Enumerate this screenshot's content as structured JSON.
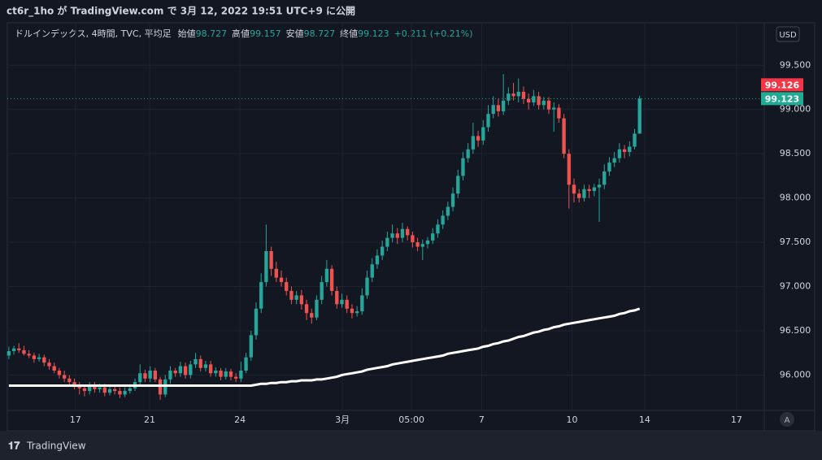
{
  "header": {
    "title": "ct6r_1ho が TradingView.com で 3月 12, 2022 19:51 UTC+9 に公開"
  },
  "footer": {
    "brand": "TradingView"
  },
  "chart_data": {
    "type": "candlestick",
    "symbol": "ドルインデックス, 4時間, TVC, 平均足",
    "ohlc_legend": [
      {
        "label": "始値",
        "value": "98.727"
      },
      {
        "label": "高値",
        "value": "99.157"
      },
      {
        "label": "安値",
        "value": "98.727"
      },
      {
        "label": "終値",
        "value": "99.123"
      }
    ],
    "change": "+0.211 (+0.21%)",
    "currency": "USD",
    "scale_mode": "A",
    "up_color": "#26a69a",
    "down_color": "#ef5350",
    "ma_color": "#ffffff",
    "ylim": [
      95.6,
      99.98
    ],
    "yticks": [
      {
        "value": 96,
        "label": "96.000"
      },
      {
        "value": 96.5,
        "label": "96.500"
      },
      {
        "value": 97,
        "label": "97.000"
      },
      {
        "value": 97.5,
        "label": "97.500"
      },
      {
        "value": 98,
        "label": "98.000"
      },
      {
        "value": 98.5,
        "label": "98.500"
      },
      {
        "value": 99,
        "label": "99.000"
      },
      {
        "value": 99.5,
        "label": "99.500"
      }
    ],
    "xlim": [
      -0.3,
      149.7
    ],
    "xticks": [
      {
        "value": 13.2,
        "label": "17"
      },
      {
        "value": 27.9,
        "label": "21"
      },
      {
        "value": 45.8,
        "label": "24"
      },
      {
        "value": 66.1,
        "label": "3月"
      },
      {
        "value": 79.8,
        "label": "05:00"
      },
      {
        "value": 93.7,
        "label": "7"
      },
      {
        "value": 111.6,
        "label": "10"
      },
      {
        "value": 126,
        "label": "14"
      },
      {
        "value": 144.2,
        "label": "17"
      }
    ],
    "price_labels": [
      {
        "value": 99.126,
        "color": "#f23645"
      },
      {
        "value": 99.123,
        "color": "#22ab94"
      }
    ],
    "open": [
      96.22,
      96.27,
      96.3,
      96.28,
      96.24,
      96.22,
      96.18,
      96.2,
      96.14,
      96.1,
      96.05,
      96.0,
      95.96,
      95.92,
      95.88,
      95.85,
      95.82,
      95.88,
      95.84,
      95.86,
      95.8,
      95.84,
      95.82,
      95.78,
      95.82,
      95.85,
      95.92,
      96.02,
      95.96,
      96.05,
      95.95,
      95.78,
      95.95,
      96.05,
      96.02,
      96.1,
      96.0,
      96.12,
      96.18,
      96.08,
      96.12,
      96.02,
      96.05,
      95.98,
      96.04,
      95.98,
      95.96,
      96.05,
      96.2,
      96.45,
      96.75,
      97.05,
      97.4,
      97.2,
      97.1,
      97.05,
      96.95,
      96.85,
      96.9,
      96.8,
      96.7,
      96.65,
      96.85,
      97.05,
      97.2,
      96.95,
      96.8,
      96.85,
      96.75,
      96.7,
      96.72,
      96.9,
      97.1,
      97.25,
      97.35,
      97.45,
      97.55,
      97.6,
      97.55,
      97.65,
      97.58,
      97.5,
      97.45,
      97.48,
      97.52,
      97.6,
      97.7,
      97.8,
      97.9,
      98.05,
      98.25,
      98.45,
      98.55,
      98.7,
      98.65,
      98.8,
      98.95,
      99.05,
      98.98,
      99.1,
      99.18,
      99.15,
      99.2,
      99.12,
      99.08,
      99.15,
      99.05,
      99.1,
      99.0,
      99.02,
      98.9,
      98.5,
      98.15,
      98.05,
      98.0,
      98.1,
      98.08,
      98.12,
      98.15,
      98.3,
      98.4,
      98.45,
      98.55,
      98.52,
      98.58,
      98.727
    ],
    "high": [
      96.32,
      96.33,
      96.36,
      96.33,
      96.28,
      96.25,
      96.24,
      96.23,
      96.18,
      96.14,
      96.08,
      96.05,
      96.0,
      95.96,
      95.92,
      95.89,
      95.92,
      95.92,
      95.9,
      95.9,
      95.88,
      95.87,
      95.86,
      95.86,
      95.89,
      95.96,
      96.12,
      96.06,
      96.1,
      96.08,
      95.98,
      96.0,
      96.1,
      96.08,
      96.15,
      96.14,
      96.16,
      96.25,
      96.22,
      96.16,
      96.16,
      96.09,
      96.08,
      96.08,
      96.07,
      96.02,
      96.15,
      96.25,
      96.5,
      96.82,
      97.15,
      97.7,
      97.45,
      97.28,
      97.18,
      97.1,
      97.0,
      96.95,
      96.96,
      96.85,
      96.75,
      96.9,
      97.12,
      97.3,
      97.24,
      97.0,
      96.92,
      96.9,
      96.8,
      96.78,
      96.98,
      97.18,
      97.32,
      97.42,
      97.52,
      97.62,
      97.7,
      97.66,
      97.72,
      97.68,
      97.62,
      97.55,
      97.53,
      97.56,
      97.66,
      97.76,
      97.86,
      97.96,
      98.12,
      98.32,
      98.52,
      98.62,
      98.85,
      98.76,
      98.88,
      99.05,
      99.15,
      99.12,
      99.4,
      99.25,
      99.3,
      99.35,
      99.26,
      99.18,
      99.22,
      99.2,
      99.14,
      99.14,
      99.08,
      99.06,
      98.95,
      98.55,
      98.22,
      98.1,
      98.15,
      98.15,
      98.16,
      98.22,
      98.38,
      98.46,
      98.52,
      98.62,
      98.6,
      98.64,
      98.78,
      99.157
    ],
    "low": [
      96.18,
      96.23,
      96.25,
      96.22,
      96.19,
      96.14,
      96.15,
      96.1,
      96.06,
      96.02,
      95.96,
      95.92,
      95.88,
      95.84,
      95.78,
      95.76,
      95.78,
      95.8,
      95.8,
      95.76,
      95.77,
      95.78,
      95.74,
      95.75,
      95.79,
      95.82,
      95.88,
      95.92,
      95.92,
      95.92,
      95.72,
      95.75,
      95.9,
      95.98,
      95.98,
      95.96,
      95.96,
      96.08,
      96.04,
      96.04,
      95.98,
      95.98,
      95.94,
      95.95,
      95.94,
      95.92,
      95.92,
      96.02,
      96.16,
      96.4,
      96.7,
      97.0,
      97.12,
      97.05,
      97.0,
      96.9,
      96.8,
      96.8,
      96.74,
      96.62,
      96.58,
      96.62,
      96.8,
      97.0,
      96.9,
      96.75,
      96.76,
      96.7,
      96.64,
      96.66,
      96.68,
      96.86,
      97.05,
      97.2,
      97.3,
      97.4,
      97.5,
      97.48,
      97.5,
      97.52,
      97.44,
      97.4,
      97.3,
      97.43,
      97.48,
      97.55,
      97.65,
      97.75,
      97.85,
      98.0,
      98.2,
      98.4,
      98.5,
      98.58,
      98.6,
      98.75,
      98.9,
      98.92,
      98.94,
      99.05,
      99.1,
      99.08,
      99.06,
      99.0,
      99.04,
      99.0,
      99.0,
      98.95,
      98.75,
      98.85,
      98.45,
      97.88,
      97.95,
      97.95,
      97.96,
      98.0,
      98.02,
      97.73,
      98.1,
      98.25,
      98.35,
      98.4,
      98.45,
      98.47,
      98.55,
      98.727
    ],
    "close": [
      96.27,
      96.3,
      96.28,
      96.24,
      96.22,
      96.18,
      96.2,
      96.14,
      96.1,
      96.05,
      96.0,
      95.96,
      95.92,
      95.88,
      95.85,
      95.82,
      95.88,
      95.84,
      95.86,
      95.8,
      95.84,
      95.82,
      95.78,
      95.82,
      95.85,
      95.92,
      96.02,
      95.96,
      96.05,
      95.95,
      95.78,
      95.95,
      96.05,
      96.02,
      96.1,
      96.0,
      96.12,
      96.18,
      96.08,
      96.12,
      96.02,
      96.05,
      95.98,
      96.04,
      95.98,
      95.96,
      96.05,
      96.2,
      96.45,
      96.75,
      97.05,
      97.4,
      97.2,
      97.1,
      97.05,
      96.95,
      96.85,
      96.9,
      96.8,
      96.7,
      96.65,
      96.85,
      97.05,
      97.2,
      96.95,
      96.8,
      96.85,
      96.75,
      96.7,
      96.72,
      96.9,
      97.1,
      97.25,
      97.35,
      97.45,
      97.55,
      97.6,
      97.55,
      97.65,
      97.58,
      97.5,
      97.45,
      97.48,
      97.52,
      97.6,
      97.7,
      97.8,
      97.9,
      98.05,
      98.25,
      98.45,
      98.55,
      98.7,
      98.65,
      98.8,
      98.95,
      99.05,
      98.98,
      99.1,
      99.18,
      99.15,
      99.2,
      99.12,
      99.08,
      99.15,
      99.05,
      99.1,
      99.0,
      99.02,
      98.9,
      98.5,
      98.15,
      98.05,
      98.0,
      98.1,
      98.08,
      98.12,
      98.15,
      98.3,
      98.4,
      98.45,
      98.55,
      98.52,
      98.58,
      98.727,
      99.123
    ],
    "ma": [
      95.88,
      95.88,
      95.88,
      95.88,
      95.88,
      95.88,
      95.88,
      95.88,
      95.88,
      95.88,
      95.88,
      95.88,
      95.88,
      95.88,
      95.88,
      95.88,
      95.88,
      95.88,
      95.88,
      95.88,
      95.88,
      95.88,
      95.88,
      95.88,
      95.88,
      95.88,
      95.88,
      95.88,
      95.88,
      95.88,
      95.88,
      95.88,
      95.88,
      95.88,
      95.88,
      95.88,
      95.88,
      95.88,
      95.88,
      95.88,
      95.88,
      95.88,
      95.88,
      95.88,
      95.88,
      95.88,
      95.88,
      95.88,
      95.88,
      95.89,
      95.9,
      95.9,
      95.91,
      95.91,
      95.92,
      95.92,
      95.93,
      95.93,
      95.94,
      95.94,
      95.94,
      95.95,
      95.95,
      95.96,
      95.97,
      95.98,
      96.0,
      96.01,
      96.02,
      96.03,
      96.04,
      96.06,
      96.07,
      96.08,
      96.09,
      96.1,
      96.12,
      96.13,
      96.14,
      96.15,
      96.16,
      96.17,
      96.18,
      96.19,
      96.2,
      96.21,
      96.22,
      96.24,
      96.25,
      96.26,
      96.27,
      96.28,
      96.29,
      96.3,
      96.32,
      96.33,
      96.35,
      96.36,
      96.38,
      96.39,
      96.41,
      96.43,
      96.44,
      96.46,
      96.48,
      96.49,
      96.51,
      96.52,
      96.54,
      96.55,
      96.57,
      96.58,
      96.59,
      96.6,
      96.61,
      96.62,
      96.63,
      96.64,
      96.65,
      96.66,
      96.67,
      96.69,
      96.7,
      96.72,
      96.73,
      96.75
    ]
  }
}
